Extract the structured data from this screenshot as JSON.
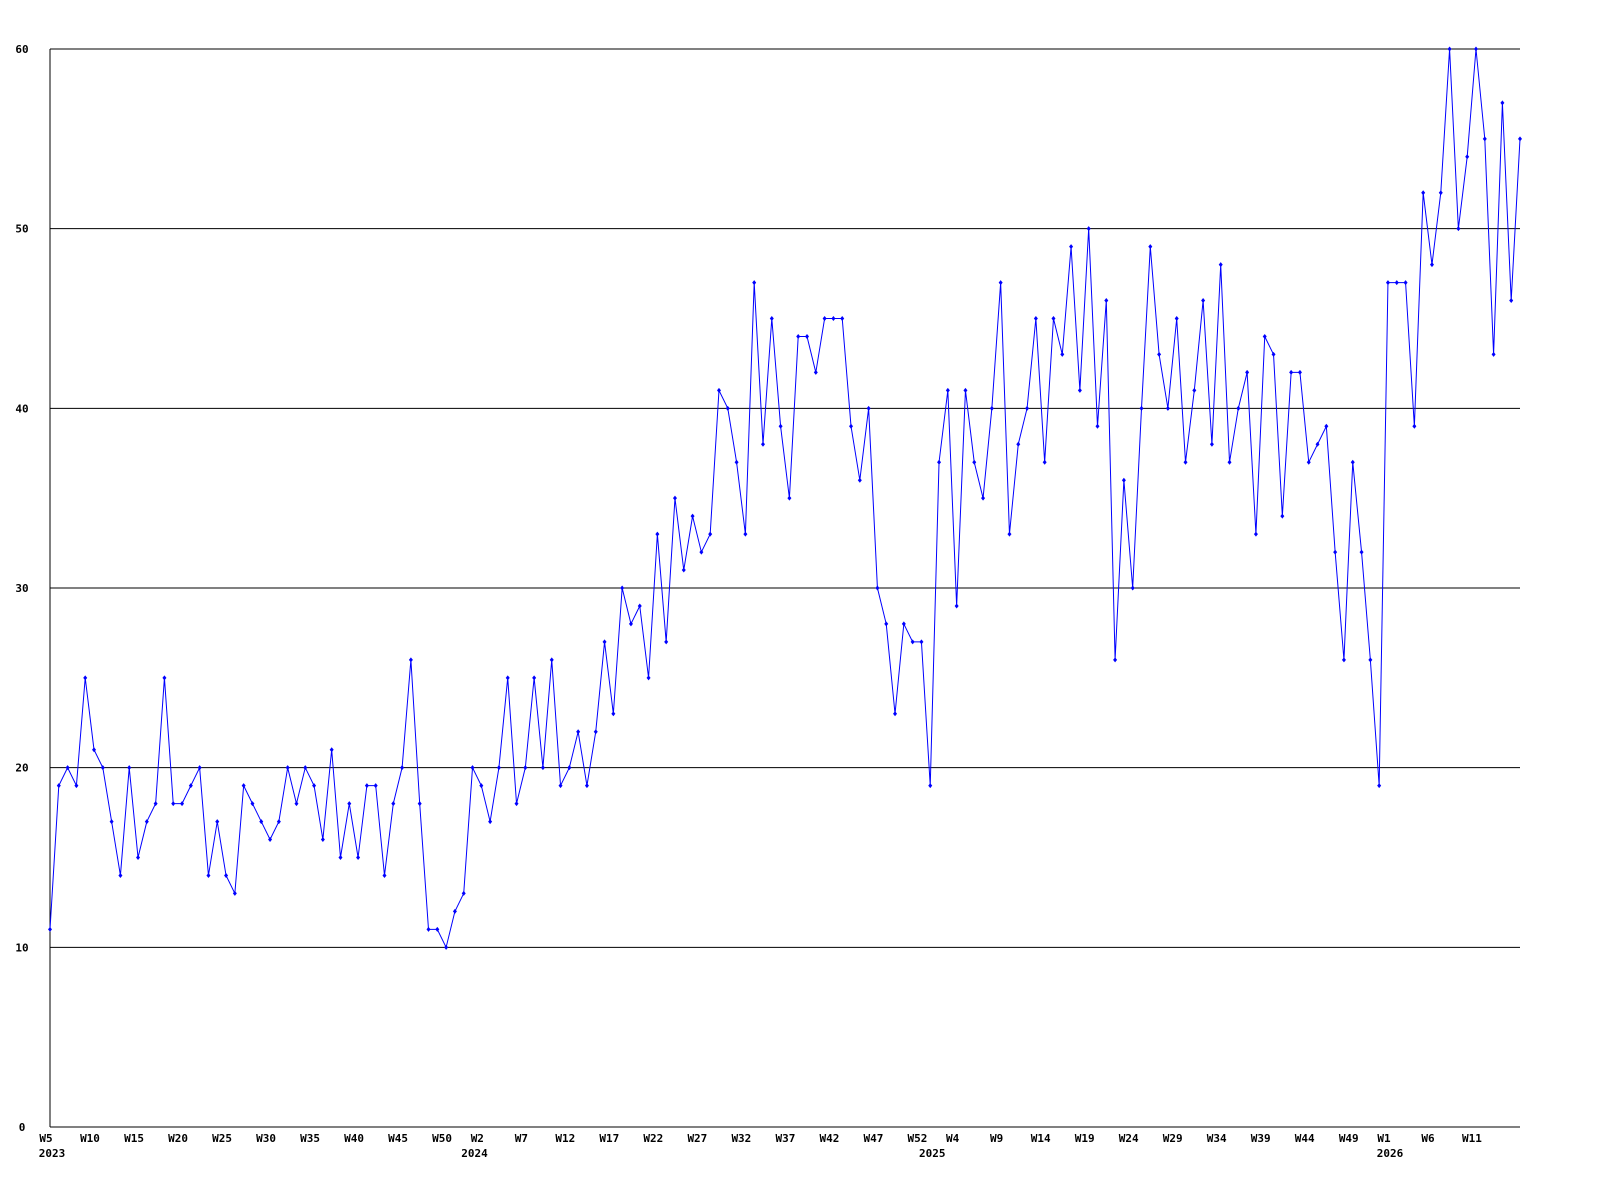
{
  "chart_data": {
    "type": "line",
    "color": "#0000ff",
    "grid": true,
    "ylim": [
      0,
      60
    ],
    "yticks": [
      0,
      10,
      20,
      30,
      40,
      50,
      60
    ],
    "categories": [
      "W5",
      null,
      null,
      null,
      null,
      "W10",
      null,
      null,
      null,
      null,
      "W15",
      null,
      null,
      null,
      null,
      "W20",
      null,
      null,
      null,
      null,
      "W25",
      null,
      null,
      null,
      null,
      "W30",
      null,
      null,
      null,
      null,
      "W35",
      null,
      null,
      null,
      null,
      "W40",
      null,
      null,
      null,
      null,
      "W45",
      null,
      null,
      null,
      null,
      "W50",
      null,
      null,
      null,
      "W2",
      null,
      null,
      null,
      null,
      "W7",
      null,
      null,
      null,
      null,
      "W12",
      null,
      null,
      null,
      null,
      "W17",
      null,
      null,
      null,
      null,
      "W22",
      null,
      null,
      null,
      null,
      "W27",
      null,
      null,
      null,
      null,
      "W32",
      null,
      null,
      null,
      null,
      "W37",
      null,
      null,
      null,
      null,
      "W42",
      null,
      null,
      null,
      null,
      "W47",
      null,
      null,
      null,
      null,
      "W52",
      null,
      null,
      null,
      "W4",
      null,
      null,
      null,
      null,
      "W9",
      null,
      null,
      null,
      null,
      "W14",
      null,
      null,
      null,
      null,
      "W19",
      null,
      null,
      null,
      null,
      "W24",
      null,
      null,
      null,
      null,
      "W29",
      null,
      null,
      null,
      null,
      "W34",
      null,
      null,
      null,
      null,
      "W39",
      null,
      null,
      null,
      null,
      "W44",
      null,
      null,
      null,
      null,
      "W49",
      null,
      null,
      null,
      "W1",
      null,
      null,
      null,
      null,
      "W6",
      null,
      null,
      null,
      null,
      "W11",
      null,
      null,
      null,
      null,
      null
    ],
    "years": [
      "2023",
      null,
      null,
      null,
      null,
      null,
      null,
      null,
      null,
      null,
      null,
      null,
      null,
      null,
      null,
      null,
      null,
      null,
      null,
      null,
      null,
      null,
      null,
      null,
      null,
      null,
      null,
      null,
      null,
      null,
      null,
      null,
      null,
      null,
      null,
      null,
      null,
      null,
      null,
      null,
      null,
      null,
      null,
      null,
      null,
      null,
      null,
      null,
      "2024",
      null,
      null,
      null,
      null,
      null,
      null,
      null,
      null,
      null,
      null,
      null,
      null,
      null,
      null,
      null,
      null,
      null,
      null,
      null,
      null,
      null,
      null,
      null,
      null,
      null,
      null,
      null,
      null,
      null,
      null,
      null,
      null,
      null,
      null,
      null,
      null,
      null,
      null,
      null,
      null,
      null,
      null,
      null,
      null,
      null,
      null,
      null,
      null,
      null,
      null,
      null,
      "2025",
      null,
      null,
      null,
      null,
      null,
      null,
      null,
      null,
      null,
      null,
      null,
      null,
      null,
      null,
      null,
      null,
      null,
      null,
      null,
      null,
      null,
      null,
      null,
      null,
      null,
      null,
      null,
      null,
      null,
      null,
      null,
      null,
      null,
      null,
      null,
      null,
      null,
      null,
      null,
      null,
      null,
      null,
      null,
      null,
      null,
      null,
      null,
      null,
      null,
      null,
      null,
      "2026",
      null,
      null,
      null,
      null,
      null,
      null,
      null,
      null,
      null,
      null,
      null,
      null,
      null,
      null,
      null
    ],
    "values": [
      11,
      19,
      20,
      19,
      25,
      21,
      20,
      17,
      14,
      20,
      15,
      17,
      18,
      25,
      18,
      18,
      19,
      20,
      14,
      17,
      14,
      13,
      19,
      18,
      17,
      16,
      17,
      20,
      18,
      20,
      19,
      16,
      21,
      15,
      18,
      15,
      19,
      19,
      14,
      18,
      20,
      26,
      18,
      11,
      11,
      10,
      12,
      13,
      20,
      19,
      17,
      20,
      25,
      18,
      20,
      25,
      20,
      26,
      19,
      20,
      22,
      19,
      22,
      27,
      23,
      30,
      28,
      29,
      25,
      33,
      27,
      35,
      31,
      34,
      32,
      33,
      41,
      40,
      37,
      33,
      47,
      38,
      45,
      39,
      35,
      44,
      44,
      42,
      45,
      45,
      45,
      39,
      36,
      40,
      30,
      28,
      23,
      28,
      27,
      27,
      19,
      37,
      41,
      29,
      41,
      37,
      35,
      40,
      47,
      33,
      38,
      40,
      45,
      37,
      45,
      43,
      49,
      41,
      50,
      39,
      46,
      26,
      36,
      30,
      40,
      49,
      43,
      40,
      45,
      37,
      41,
      46,
      38,
      48,
      37,
      40,
      42,
      33,
      44,
      43,
      34,
      42,
      42,
      37,
      38,
      39,
      32,
      26,
      37,
      32,
      26,
      19,
      47,
      47,
      47,
      39,
      52,
      48,
      52,
      60,
      50,
      54,
      60,
      55,
      43,
      57,
      46,
      55
    ]
  }
}
